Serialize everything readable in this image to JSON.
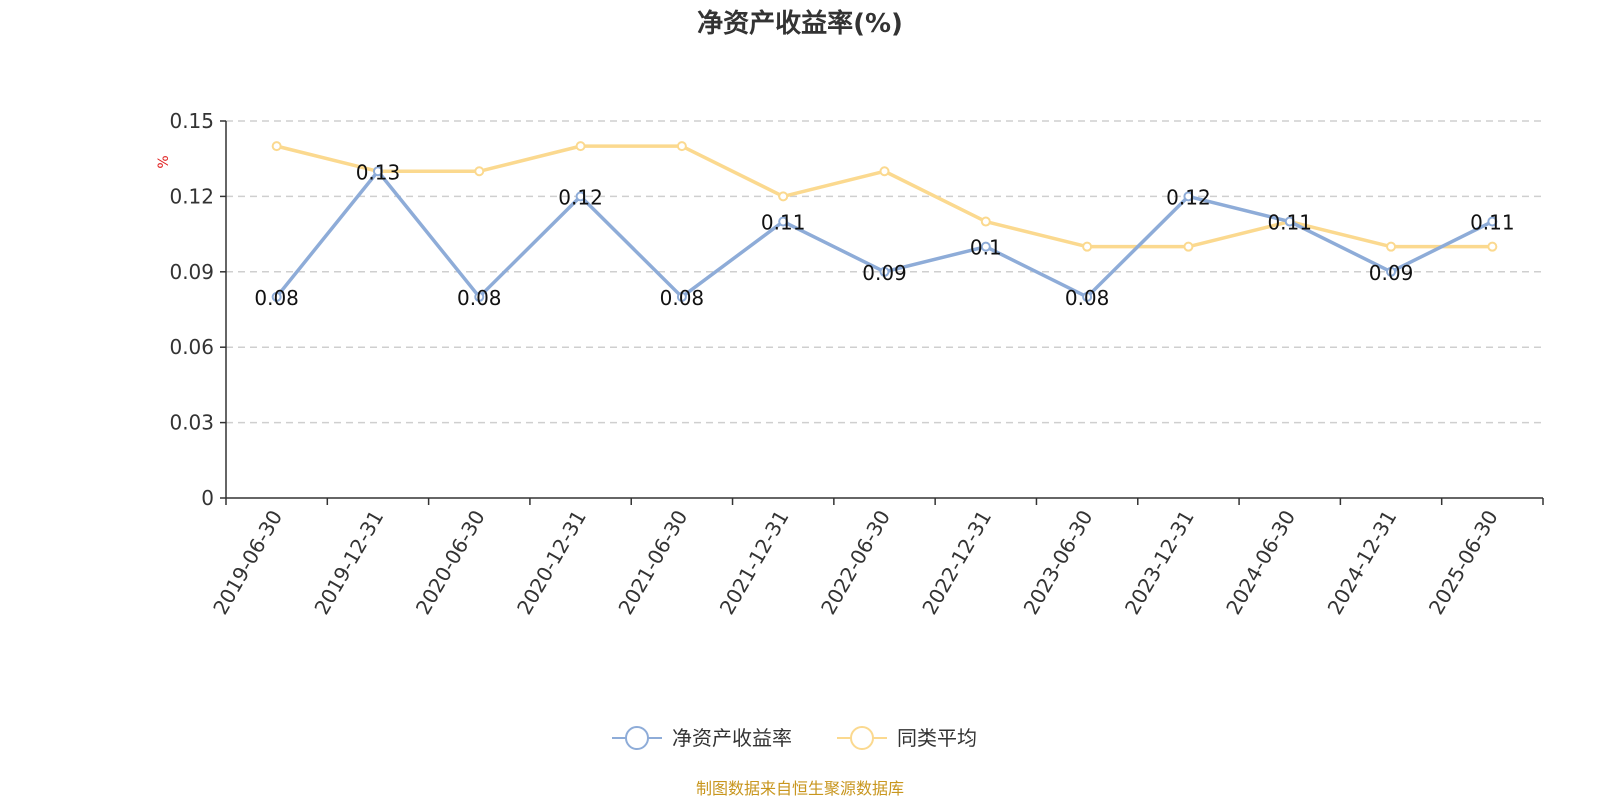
{
  "chart_data": {
    "type": "line",
    "title": "净资产收益率(%)",
    "ylabel": "%",
    "xlabel": "",
    "categories": [
      "2019-06-30",
      "2019-12-31",
      "2020-06-30",
      "2020-12-31",
      "2021-06-30",
      "2021-12-31",
      "2022-06-30",
      "2022-12-31",
      "2023-06-30",
      "2023-12-31",
      "2024-06-30",
      "2024-12-31",
      "2025-06-30"
    ],
    "series": [
      {
        "name": "净资产收益率",
        "color": "#8eacd8",
        "values": [
          0.08,
          0.13,
          0.08,
          0.12,
          0.08,
          0.11,
          0.09,
          0.1,
          0.08,
          0.12,
          0.11,
          0.09,
          0.11
        ],
        "data_labels": [
          "0.08",
          "0.13",
          "0.08",
          "0.12",
          "0.08",
          "0.11",
          "0.09",
          "0.1",
          "0.08",
          "0.12",
          "0.11",
          "0.09",
          "0.11"
        ]
      },
      {
        "name": "同类平均",
        "color": "#fbd98f",
        "values": [
          0.14,
          0.13,
          0.13,
          0.14,
          0.14,
          0.12,
          0.13,
          0.11,
          0.1,
          0.1,
          0.11,
          0.1,
          0.1
        ]
      }
    ],
    "ylim": [
      0,
      0.15
    ],
    "yticks": [
      0,
      0.03,
      0.06,
      0.09,
      0.12,
      0.15
    ],
    "ytick_labels": [
      "0",
      "0.03",
      "0.06",
      "0.09",
      "0.12",
      "0.15"
    ],
    "grid": true,
    "legend_position": "bottom-center"
  },
  "source_note": "制图数据来自恒生聚源数据库"
}
